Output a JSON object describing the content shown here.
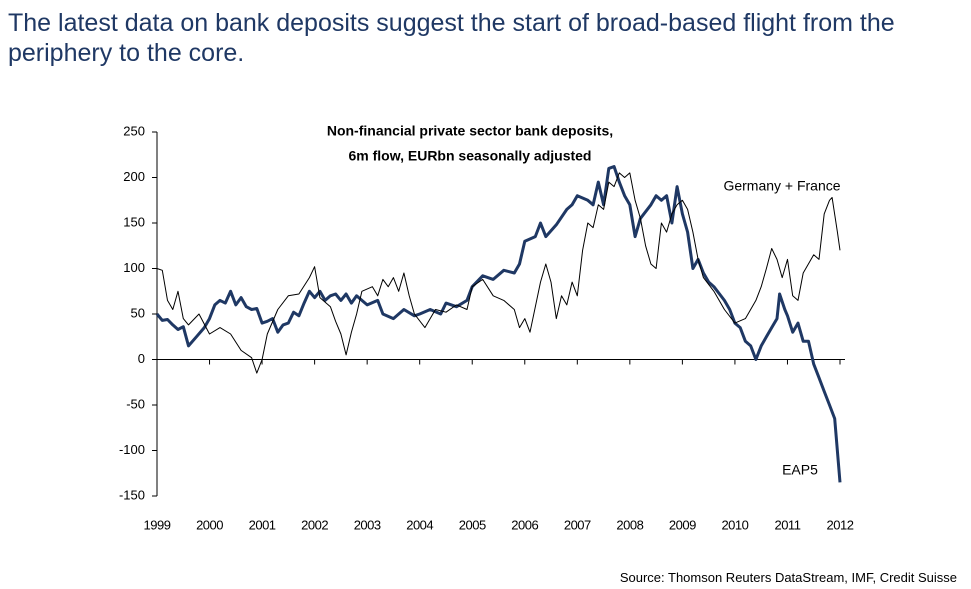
{
  "headline": "The latest data on bank deposits suggest the start of broad-based flight from the periphery to the core.",
  "source": "Source: Thomson Reuters DataStream, IMF, Credit Suisse",
  "chart_data": {
    "type": "line",
    "title": "Non-financial private sector bank deposits,",
    "subtitle": "6m flow, EURbn seasonally adjusted",
    "xlim": [
      1999,
      2012
    ],
    "xticks": [
      1999,
      2000,
      2001,
      2002,
      2003,
      2004,
      2005,
      2006,
      2007,
      2008,
      2009,
      2010,
      2011,
      2012
    ],
    "ylim": [
      -150,
      250
    ],
    "yticks": [
      250,
      200,
      150,
      100,
      50,
      0,
      -50,
      -100,
      -150
    ],
    "series": [
      {
        "name": "EAP5",
        "color": "#1f3864",
        "width": 3,
        "x": [
          1999.0,
          1999.1,
          1999.2,
          1999.3,
          1999.4,
          1999.5,
          1999.6,
          1999.75,
          1999.9,
          2000.0,
          2000.1,
          2000.2,
          2000.3,
          2000.4,
          2000.5,
          2000.6,
          2000.7,
          2000.8,
          2000.9,
          2001.0,
          2001.1,
          2001.2,
          2001.3,
          2001.4,
          2001.5,
          2001.6,
          2001.7,
          2001.8,
          2001.9,
          2002.0,
          2002.1,
          2002.2,
          2002.3,
          2002.4,
          2002.5,
          2002.6,
          2002.7,
          2002.8,
          2002.9,
          2003.0,
          2003.2,
          2003.3,
          2003.5,
          2003.7,
          2003.9,
          2004.0,
          2004.2,
          2004.4,
          2004.5,
          2004.7,
          2004.9,
          2005.0,
          2005.2,
          2005.4,
          2005.6,
          2005.8,
          2005.9,
          2006.0,
          2006.2,
          2006.3,
          2006.4,
          2006.6,
          2006.8,
          2006.9,
          2007.0,
          2007.2,
          2007.3,
          2007.4,
          2007.5,
          2007.6,
          2007.7,
          2007.8,
          2007.9,
          2008.0,
          2008.1,
          2008.2,
          2008.4,
          2008.5,
          2008.6,
          2008.7,
          2008.8,
          2008.9,
          2009.0,
          2009.1,
          2009.2,
          2009.3,
          2009.4,
          2009.5,
          2009.6,
          2009.8,
          2009.9,
          2010.0,
          2010.1,
          2010.2,
          2010.3,
          2010.4,
          2010.5,
          2010.6,
          2010.7,
          2010.8,
          2010.85,
          2010.95,
          2011.0,
          2011.1,
          2011.2,
          2011.3,
          2011.4,
          2011.5,
          2011.6,
          2011.7,
          2011.8,
          2011.9,
          2012.0
        ],
        "values": [
          50,
          43,
          44,
          38,
          33,
          36,
          15,
          25,
          35,
          45,
          60,
          65,
          62,
          75,
          60,
          68,
          58,
          55,
          56,
          40,
          42,
          45,
          30,
          38,
          40,
          52,
          48,
          62,
          75,
          68,
          75,
          65,
          70,
          72,
          65,
          72,
          62,
          70,
          65,
          60,
          65,
          50,
          45,
          55,
          48,
          50,
          55,
          50,
          62,
          58,
          65,
          80,
          92,
          88,
          98,
          95,
          105,
          130,
          135,
          150,
          135,
          148,
          165,
          170,
          180,
          175,
          170,
          195,
          170,
          210,
          212,
          195,
          180,
          170,
          135,
          155,
          170,
          180,
          175,
          180,
          150,
          190,
          160,
          140,
          100,
          110,
          95,
          85,
          80,
          65,
          55,
          40,
          35,
          20,
          15,
          0,
          15,
          25,
          35,
          45,
          72,
          55,
          48,
          30,
          40,
          20,
          20,
          -5,
          -20,
          -35,
          -50,
          -65,
          -135
        ]
      },
      {
        "name": "Germany + France",
        "color": "#000000",
        "width": 1,
        "x": [
          1999.0,
          1999.1,
          1999.2,
          1999.3,
          1999.4,
          1999.5,
          1999.6,
          1999.8,
          2000.0,
          2000.2,
          2000.4,
          2000.6,
          2000.8,
          2000.9,
          2001.0,
          2001.1,
          2001.3,
          2001.5,
          2001.7,
          2001.9,
          2002.0,
          2002.1,
          2002.3,
          2002.4,
          2002.5,
          2002.6,
          2002.7,
          2002.8,
          2002.9,
          2003.1,
          2003.2,
          2003.3,
          2003.4,
          2003.5,
          2003.6,
          2003.7,
          2003.8,
          2003.9,
          2004.1,
          2004.3,
          2004.5,
          2004.7,
          2004.9,
          2005.0,
          2005.2,
          2005.4,
          2005.6,
          2005.8,
          2005.9,
          2006.0,
          2006.1,
          2006.3,
          2006.4,
          2006.5,
          2006.6,
          2006.7,
          2006.8,
          2006.9,
          2007.0,
          2007.1,
          2007.2,
          2007.3,
          2007.4,
          2007.5,
          2007.6,
          2007.7,
          2007.8,
          2007.9,
          2008.0,
          2008.1,
          2008.2,
          2008.3,
          2008.4,
          2008.5,
          2008.6,
          2008.7,
          2008.8,
          2008.9,
          2009.0,
          2009.1,
          2009.2,
          2009.3,
          2009.4,
          2009.6,
          2009.8,
          2010.0,
          2010.2,
          2010.4,
          2010.5,
          2010.6,
          2010.7,
          2010.8,
          2010.9,
          2011.0,
          2011.1,
          2011.2,
          2011.3,
          2011.5,
          2011.6,
          2011.7,
          2011.8,
          2011.85,
          2011.95,
          2012.0
        ],
        "values": [
          100,
          98,
          65,
          55,
          75,
          45,
          38,
          50,
          28,
          35,
          28,
          10,
          2,
          -15,
          0,
          28,
          55,
          70,
          72,
          90,
          102,
          68,
          58,
          42,
          28,
          5,
          30,
          50,
          75,
          80,
          70,
          88,
          80,
          90,
          75,
          95,
          70,
          50,
          35,
          55,
          52,
          60,
          55,
          80,
          88,
          70,
          65,
          55,
          35,
          45,
          30,
          85,
          105,
          85,
          45,
          70,
          60,
          85,
          70,
          120,
          150,
          145,
          170,
          165,
          195,
          190,
          205,
          200,
          205,
          175,
          155,
          125,
          105,
          100,
          150,
          140,
          160,
          170,
          175,
          165,
          140,
          110,
          90,
          75,
          55,
          40,
          45,
          65,
          80,
          100,
          122,
          110,
          90,
          110,
          70,
          65,
          95,
          115,
          110,
          160,
          175,
          178,
          140,
          120
        ]
      }
    ]
  }
}
